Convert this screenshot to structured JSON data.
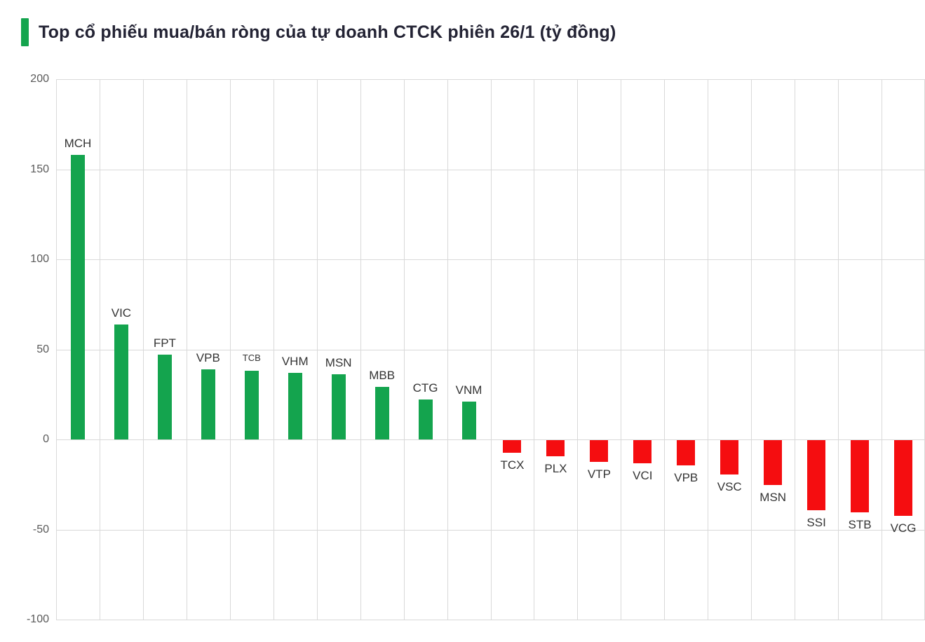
{
  "accent_color": "#14A44E",
  "chart_data": {
    "type": "bar",
    "title": "Top cổ phiếu mua/bán ròng của tự doanh CTCK phiên 26/1 (tỷ đồng)",
    "categories": [
      "MCH",
      "VIC",
      "FPT",
      "VPB",
      "TCB",
      "VHM",
      "MSN",
      "MBB",
      "CTG",
      "VNM",
      "TCX",
      "PLX",
      "VTP",
      "VCI",
      "VPB",
      "VSC",
      "MSN",
      "SSI",
      "STB",
      "VCG"
    ],
    "values": [
      158,
      64,
      47,
      39,
      38,
      37,
      36,
      29,
      22,
      21,
      -7,
      -9,
      -12,
      -13,
      -14,
      -19,
      -25,
      -39,
      -40,
      -42
    ],
    "xlabel": "",
    "ylabel": "",
    "ylim": [
      -100,
      200
    ],
    "yticks": [
      200,
      150,
      100,
      50,
      0,
      -50,
      -100
    ],
    "grid": true,
    "legend": false,
    "positive_color": "#14A44E",
    "negative_color": "#F50D10",
    "small_labels": [
      "TCB"
    ]
  }
}
